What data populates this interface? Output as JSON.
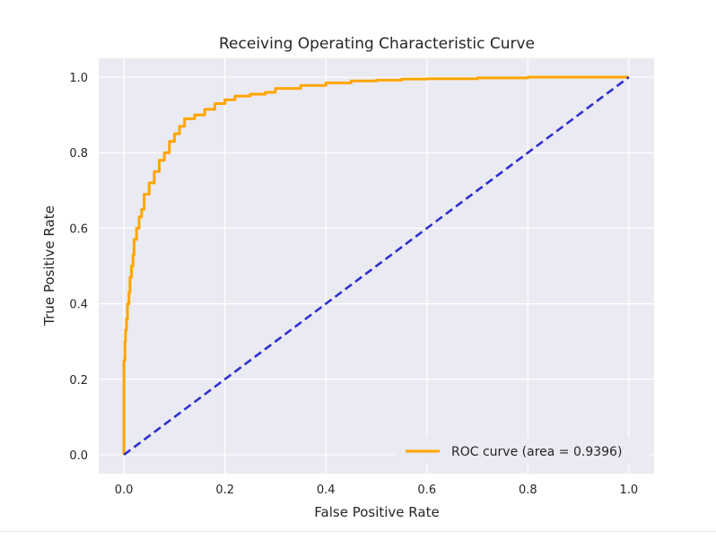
{
  "chart_data": {
    "type": "line",
    "title": "Receiving Operating Characteristic Curve",
    "xlabel": "False Positive Rate",
    "ylabel": "True Positive Rate",
    "xlim": [
      -0.05,
      1.05
    ],
    "ylim": [
      -0.05,
      1.05
    ],
    "xticks": [
      "0.0",
      "0.2",
      "0.4",
      "0.6",
      "0.8",
      "1.0"
    ],
    "yticks": [
      "0.0",
      "0.2",
      "0.4",
      "0.6",
      "0.8",
      "1.0"
    ],
    "grid": true,
    "legend_position": "bottom-right",
    "background_color": "#eaeaf2",
    "grid_color": "#ffffff",
    "series": [
      {
        "name": "ROC curve (area = 0.9396)",
        "style": "solid",
        "color": "#ffa500",
        "x": [
          0.0,
          0.0,
          0.002,
          0.003,
          0.005,
          0.007,
          0.01,
          0.012,
          0.015,
          0.018,
          0.02,
          0.025,
          0.03,
          0.035,
          0.04,
          0.05,
          0.06,
          0.07,
          0.08,
          0.09,
          0.1,
          0.11,
          0.12,
          0.14,
          0.16,
          0.18,
          0.2,
          0.22,
          0.25,
          0.28,
          0.3,
          0.35,
          0.4,
          0.45,
          0.5,
          0.55,
          0.6,
          0.7,
          0.8,
          0.9,
          1.0
        ],
        "y": [
          0.0,
          0.18,
          0.25,
          0.3,
          0.33,
          0.36,
          0.4,
          0.43,
          0.47,
          0.5,
          0.53,
          0.57,
          0.6,
          0.63,
          0.65,
          0.69,
          0.72,
          0.75,
          0.78,
          0.8,
          0.83,
          0.85,
          0.87,
          0.89,
          0.9,
          0.915,
          0.93,
          0.94,
          0.95,
          0.955,
          0.96,
          0.97,
          0.978,
          0.985,
          0.99,
          0.992,
          0.995,
          0.996,
          0.998,
          1.0,
          1.0
        ]
      },
      {
        "style": "dashed",
        "color": "#2f2fcf",
        "x": [
          0.0,
          1.0
        ],
        "y": [
          0.0,
          1.0
        ]
      }
    ]
  }
}
